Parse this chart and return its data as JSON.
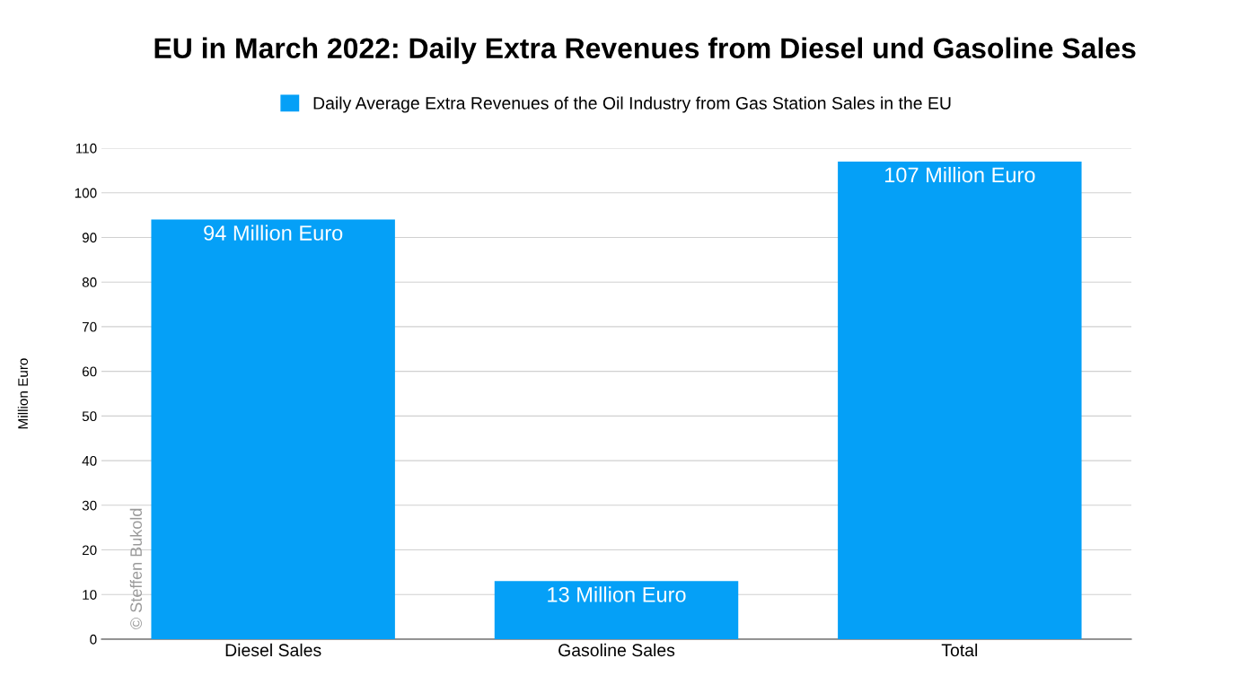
{
  "chart_data": {
    "type": "bar",
    "title": "EU in March 2022: Daily Extra Revenues from Diesel und Gasoline Sales",
    "categories": [
      "Diesel Sales",
      "Gasoline Sales",
      "Total"
    ],
    "series": [
      {
        "name": "Daily Average Extra Revenues of the Oil Industry from Gas Station Sales in the EU",
        "color": "#05a0f7",
        "values": [
          94,
          13,
          107
        ],
        "value_labels": [
          "94 Million Euro",
          "13 Million Euro",
          "107 Million Euro"
        ]
      }
    ],
    "ylabel": "Million Euro",
    "ylim": [
      0,
      110
    ],
    "yticks": [
      0,
      10,
      20,
      30,
      40,
      50,
      60,
      70,
      80,
      90,
      100,
      110
    ],
    "grid": "y",
    "legend": "top",
    "annotations": [
      "© Steffen Bukold"
    ]
  }
}
